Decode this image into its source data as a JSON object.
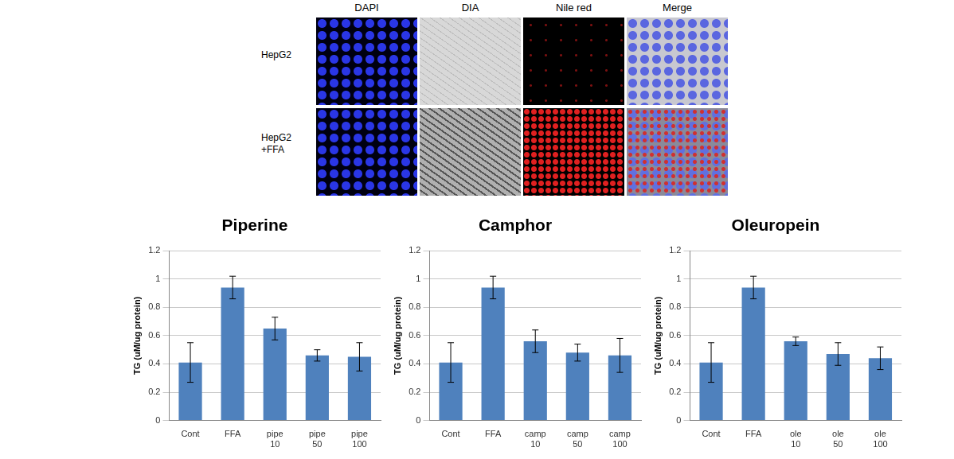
{
  "figure_panel": {
    "columns": [
      "DAPI",
      "DIA",
      "Nile red",
      "Merge"
    ],
    "rows": [
      "HepG2",
      "HepG2 +FFA"
    ]
  },
  "chart_data": [
    {
      "type": "bar",
      "title": "Piperine",
      "y_label": "TG (uM/ug protein)",
      "categories": [
        "Cont",
        "FFA",
        "pipe 10",
        "pipe 50",
        "pipe 100"
      ],
      "values": [
        0.41,
        0.94,
        0.65,
        0.46,
        0.45
      ],
      "errors": [
        0.14,
        0.08,
        0.08,
        0.04,
        0.1
      ],
      "color": "#4f81bd",
      "ylim": [
        0,
        1.2
      ],
      "yticks": [
        0,
        0.2,
        0.4,
        0.6,
        0.8,
        1,
        1.2
      ],
      "grid": true
    },
    {
      "type": "bar",
      "title": "Camphor",
      "y_label": "TG (uM/ug protein)",
      "categories": [
        "Cont",
        "FFA",
        "camp 10",
        "camp 50",
        "camp 100"
      ],
      "values": [
        0.41,
        0.94,
        0.56,
        0.48,
        0.46
      ],
      "errors": [
        0.14,
        0.08,
        0.08,
        0.06,
        0.12
      ],
      "color": "#4f81bd",
      "ylim": [
        0,
        1.2
      ],
      "yticks": [
        0,
        0.2,
        0.4,
        0.6,
        0.8,
        1,
        1.2
      ],
      "grid": true
    },
    {
      "type": "bar",
      "title": "Oleuropein",
      "y_label": "TG (uM/ug protein)",
      "categories": [
        "Cont",
        "FFA",
        "ole 10",
        "ole 50",
        "ole 100"
      ],
      "values": [
        0.41,
        0.94,
        0.56,
        0.47,
        0.44
      ],
      "errors": [
        0.14,
        0.08,
        0.03,
        0.08,
        0.08
      ],
      "color": "#4f81bd",
      "ylim": [
        0,
        1.2
      ],
      "yticks": [
        0,
        0.2,
        0.4,
        0.6,
        0.8,
        1,
        1.2
      ],
      "grid": true
    }
  ]
}
